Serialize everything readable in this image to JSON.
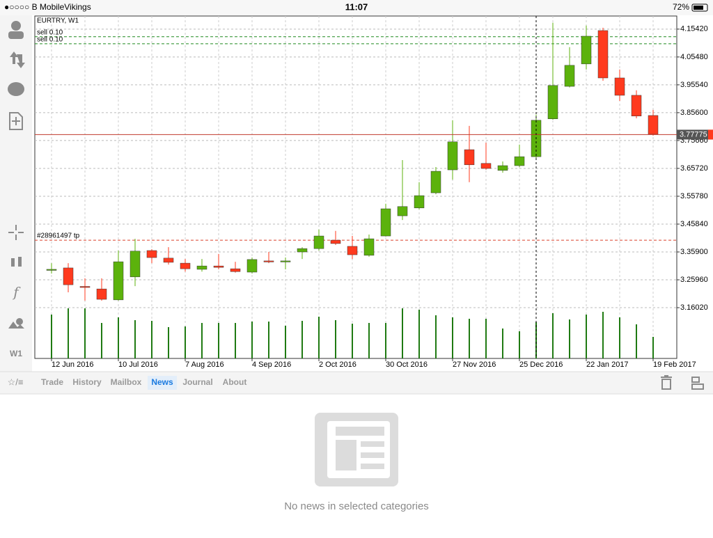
{
  "status_bar": {
    "carrier": "●○○○○ B MobileVikings",
    "time": "11:07",
    "battery": "72%"
  },
  "sidebar": {
    "timeframe": "W1"
  },
  "chart_data": {
    "type": "candlestick",
    "title": "EURTRY, W1",
    "x": [
      "12 Jun 2016",
      null,
      null,
      null,
      "10 Jul 2016",
      null,
      null,
      null,
      "7 Aug 2016",
      null,
      null,
      null,
      "4 Sep 2016",
      null,
      null,
      null,
      "2 Oct 2016",
      null,
      null,
      null,
      "30 Oct 2016",
      null,
      null,
      null,
      "27 Nov 2016",
      null,
      null,
      null,
      "25 Dec 2016",
      null,
      null,
      null,
      "22 Jan 2017",
      null,
      null,
      null,
      "19 Feb 2017"
    ],
    "open": [
      3.294,
      3.302,
      3.236,
      3.227,
      3.188,
      3.27,
      3.364,
      3.337,
      3.319,
      3.297,
      3.309,
      3.299,
      3.287,
      3.327,
      3.324,
      3.359,
      3.371,
      3.401,
      3.379,
      3.347,
      3.416,
      3.488,
      3.516,
      3.57,
      3.652,
      3.724,
      3.675,
      3.65,
      3.667,
      3.699,
      3.834,
      3.95,
      4.03,
      4.149,
      3.98,
      3.918,
      3.846
    ],
    "high": [
      3.319,
      3.319,
      3.265,
      3.265,
      3.364,
      3.406,
      3.369,
      3.376,
      3.334,
      3.334,
      3.352,
      3.324,
      3.339,
      3.359,
      3.339,
      3.376,
      3.439,
      3.434,
      3.416,
      3.421,
      3.531,
      3.687,
      3.608,
      3.662,
      3.829,
      3.809,
      3.749,
      3.682,
      3.742,
      3.849,
      4.177,
      4.09,
      4.167,
      4.159,
      4.01,
      3.936,
      3.866
    ],
    "low": [
      3.282,
      3.215,
      3.185,
      3.185,
      3.185,
      3.237,
      3.319,
      3.314,
      3.289,
      3.289,
      3.297,
      3.285,
      3.282,
      3.319,
      3.297,
      3.334,
      3.364,
      3.384,
      3.334,
      3.342,
      3.414,
      3.473,
      3.511,
      3.565,
      3.617,
      3.608,
      3.652,
      3.642,
      3.662,
      3.692,
      3.831,
      3.946,
      4.01,
      3.97,
      3.898,
      3.836,
      3.774
    ],
    "close": [
      3.297,
      3.242,
      3.233,
      3.19,
      3.324,
      3.362,
      3.339,
      3.322,
      3.299,
      3.309,
      3.304,
      3.289,
      3.332,
      3.324,
      3.327,
      3.371,
      3.416,
      3.389,
      3.349,
      3.406,
      3.513,
      3.521,
      3.56,
      3.647,
      3.752,
      3.67,
      3.657,
      3.667,
      3.699,
      3.829,
      3.953,
      4.025,
      4.129,
      3.98,
      3.918,
      3.844,
      3.779
    ],
    "volume": [
      63,
      72,
      72,
      51,
      59,
      55,
      54,
      45,
      46,
      51,
      51,
      51,
      53,
      53,
      47,
      54,
      60,
      55,
      50,
      51,
      51,
      72,
      70,
      62,
      59,
      57,
      57,
      43,
      39,
      52,
      65,
      56,
      63,
      67,
      59,
      49,
      31
    ],
    "up_color": "#5cb20c",
    "down_color": "#ff3a1e",
    "volume_color": "#1f7a12",
    "ylim": [
      2.979,
      4.201
    ],
    "yticks": [
      {
        "value": 4.1542,
        "label": "4.15420"
      },
      {
        "value": 4.0548,
        "label": "4.05480"
      },
      {
        "value": 3.9554,
        "label": "3.95540"
      },
      {
        "value": 3.856,
        "label": "3.85600"
      },
      {
        "value": 3.7566,
        "label": "3.75660"
      },
      {
        "value": 3.6572,
        "label": "3.65720"
      },
      {
        "value": 3.5578,
        "label": "3.55780"
      },
      {
        "value": 3.4584,
        "label": "3.45840"
      },
      {
        "value": 3.359,
        "label": "3.35900"
      },
      {
        "value": 3.2596,
        "label": "3.25960"
      },
      {
        "value": 3.1602,
        "label": "3.16020"
      }
    ],
    "grid": true,
    "current_price": 3.77775,
    "orders": [
      {
        "label": "sell 0.10",
        "price": 4.127,
        "color": "#1e8a1e"
      },
      {
        "label": "sell 0.10",
        "price": 4.102,
        "color": "#1e8a1e"
      },
      {
        "label": "#28961497 tp",
        "price": 3.401,
        "color": "#d9402b"
      }
    ]
  },
  "tabs": {
    "items": [
      "Trade",
      "History",
      "Mailbox",
      "News",
      "Journal",
      "About"
    ],
    "active_index": 3
  },
  "empty_state": {
    "message": "No news in selected categories"
  }
}
